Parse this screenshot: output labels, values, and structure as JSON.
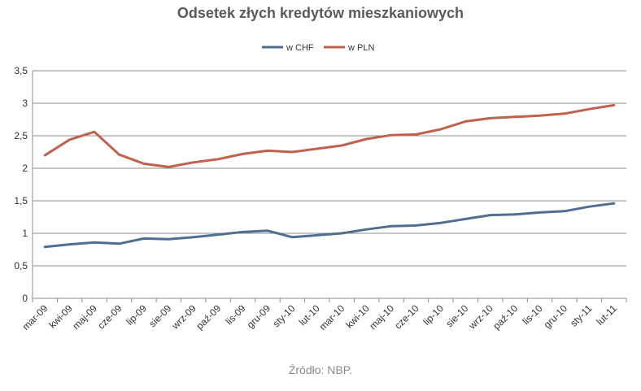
{
  "chart_data": {
    "type": "line",
    "title": "Odsetek złych kredytów mieszkaniowych",
    "source": "Źródło: NBP.",
    "categories": [
      "mar-09",
      "kwi-09",
      "maj-09",
      "cze-09",
      "lip-09",
      "sie-09",
      "wrz-09",
      "paź-09",
      "lis-09",
      "gru-09",
      "sty-10",
      "lut-10",
      "mar-10",
      "kwi-10",
      "maj-10",
      "cze-10",
      "lip-10",
      "sie-10",
      "wrz-10",
      "paź-10",
      "lis-10",
      "gru-10",
      "sty-11",
      "lut-11"
    ],
    "series": [
      {
        "name": "w CHF",
        "color": "#4f6f91",
        "values": [
          0.79,
          0.83,
          0.86,
          0.84,
          0.92,
          0.91,
          0.94,
          0.98,
          1.02,
          1.04,
          0.94,
          0.97,
          1.0,
          1.06,
          1.11,
          1.12,
          1.16,
          1.22,
          1.28,
          1.29,
          1.32,
          1.34,
          1.41,
          1.46
        ]
      },
      {
        "name": "w PLN",
        "color": "#c0604d",
        "values": [
          2.2,
          2.44,
          2.56,
          2.21,
          2.07,
          2.02,
          2.09,
          2.14,
          2.22,
          2.27,
          2.25,
          2.3,
          2.35,
          2.45,
          2.51,
          2.52,
          2.6,
          2.72,
          2.77,
          2.79,
          2.81,
          2.84,
          2.91,
          2.97
        ]
      }
    ],
    "ylim": [
      0,
      3.5
    ],
    "yticks": [
      "0",
      "0,5",
      "1",
      "1,5",
      "2",
      "2,5",
      "3",
      "3,5"
    ],
    "grid": true,
    "legend_position": "top-center"
  }
}
